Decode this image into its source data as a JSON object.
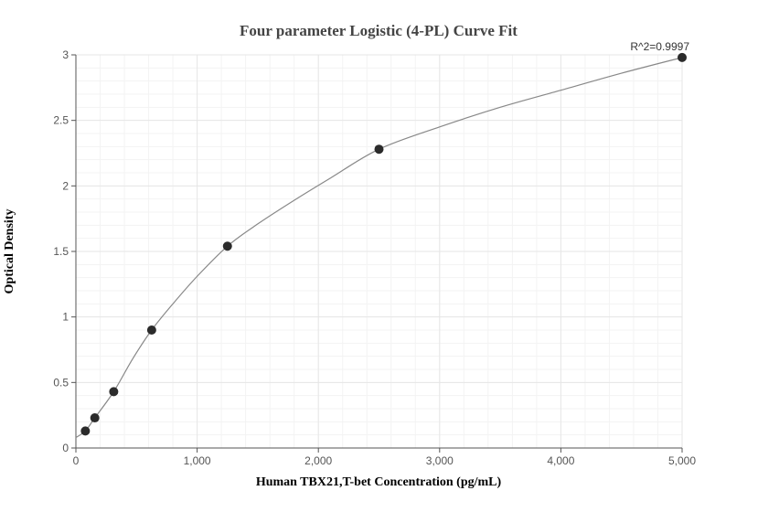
{
  "chart_data": {
    "type": "scatter",
    "title": "Four parameter Logistic (4-PL) Curve Fit",
    "xlabel": "Human TBX21,T-bet Concentration (pg/mL)",
    "ylabel": "Optical Density",
    "xlim": [
      0,
      5000
    ],
    "ylim": [
      0,
      3
    ],
    "x_ticks": [
      0,
      1000,
      2000,
      3000,
      4000,
      5000
    ],
    "x_tick_labels": [
      "0",
      "1,000",
      "2,000",
      "3,000",
      "4,000",
      "5,000"
    ],
    "y_ticks": [
      0,
      0.5,
      1,
      1.5,
      2,
      2.5,
      3
    ],
    "y_tick_labels": [
      "0",
      "0.5",
      "1",
      "1.5",
      "2",
      "2.5",
      "3"
    ],
    "grid": true,
    "points": {
      "x": [
        78,
        156,
        312,
        625,
        1250,
        2500,
        5000
      ],
      "y": [
        0.13,
        0.23,
        0.43,
        0.9,
        1.54,
        2.28,
        2.98
      ]
    },
    "curve": {
      "x": [
        0,
        78,
        156,
        312,
        468,
        625,
        800,
        1000,
        1250,
        1500,
        1800,
        2100,
        2500,
        3000,
        3500,
        4000,
        4500,
        5000
      ],
      "y": [
        0.08,
        0.13,
        0.23,
        0.43,
        0.68,
        0.9,
        1.1,
        1.31,
        1.54,
        1.71,
        1.89,
        2.06,
        2.28,
        2.45,
        2.6,
        2.73,
        2.86,
        2.98
      ]
    },
    "annotation": "R^2=0.9997",
    "colors": {
      "point": "#2b2b2b",
      "curve": "#888888",
      "grid_major": "#e6e6e6",
      "grid_minor": "#f3f3f3",
      "axis": "#555555"
    }
  }
}
